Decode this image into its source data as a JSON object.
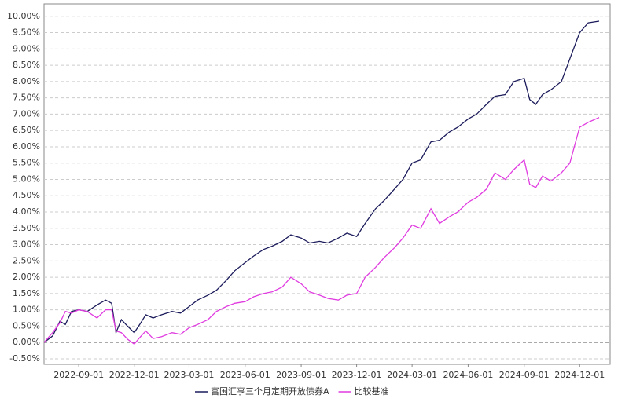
{
  "chart_data": {
    "type": "line",
    "x": [
      "2022-07-06",
      "2022-07-20",
      "2022-08-01",
      "2022-08-10",
      "2022-08-20",
      "2022-09-01",
      "2022-09-15",
      "2022-10-01",
      "2022-10-15",
      "2022-10-25",
      "2022-11-01",
      "2022-11-10",
      "2022-11-20",
      "2022-12-01",
      "2022-12-10",
      "2022-12-20",
      "2023-01-01",
      "2023-01-15",
      "2023-02-01",
      "2023-02-15",
      "2023-03-01",
      "2023-03-15",
      "2023-04-01",
      "2023-04-15",
      "2023-05-01",
      "2023-05-15",
      "2023-06-01",
      "2023-06-15",
      "2023-07-01",
      "2023-07-15",
      "2023-08-01",
      "2023-08-15",
      "2023-09-01",
      "2023-09-15",
      "2023-10-01",
      "2023-10-15",
      "2023-11-01",
      "2023-11-15",
      "2023-12-01",
      "2023-12-15",
      "2024-01-01",
      "2024-01-15",
      "2024-02-01",
      "2024-02-15",
      "2024-03-01",
      "2024-03-15",
      "2024-04-01",
      "2024-04-15",
      "2024-05-01",
      "2024-05-15",
      "2024-06-01",
      "2024-06-15",
      "2024-07-01",
      "2024-07-15",
      "2024-08-01",
      "2024-08-15",
      "2024-09-01",
      "2024-09-10",
      "2024-09-20",
      "2024-10-01",
      "2024-10-15",
      "2024-11-01",
      "2024-11-15",
      "2024-12-01",
      "2024-12-15",
      "2025-01-02"
    ],
    "series": [
      {
        "name": "富国汇亨三个月定期开放债券A",
        "color": "#1c1c5c",
        "values": [
          0.0,
          0.2,
          0.65,
          0.55,
          0.95,
          1.0,
          0.95,
          1.15,
          1.3,
          1.2,
          0.3,
          0.7,
          0.5,
          0.3,
          0.55,
          0.85,
          0.75,
          0.85,
          0.95,
          0.9,
          1.1,
          1.3,
          1.45,
          1.6,
          1.9,
          2.2,
          2.45,
          2.65,
          2.85,
          2.95,
          3.1,
          3.3,
          3.2,
          3.05,
          3.1,
          3.05,
          3.2,
          3.35,
          3.25,
          3.65,
          4.1,
          4.35,
          4.7,
          5.0,
          5.5,
          5.6,
          6.15,
          6.2,
          6.45,
          6.6,
          6.85,
          7.0,
          7.3,
          7.55,
          7.6,
          8.0,
          8.1,
          7.45,
          7.3,
          7.6,
          7.75,
          8.0,
          8.7,
          9.5,
          9.8,
          9.85
        ]
      },
      {
        "name": "比较基准",
        "color": "#e03ce0",
        "values": [
          0.0,
          0.3,
          0.6,
          0.95,
          0.9,
          1.0,
          0.95,
          0.75,
          1.0,
          1.0,
          0.35,
          0.3,
          0.1,
          -0.05,
          0.15,
          0.35,
          0.12,
          0.18,
          0.3,
          0.25,
          0.45,
          0.55,
          0.7,
          0.95,
          1.1,
          1.2,
          1.25,
          1.4,
          1.5,
          1.55,
          1.7,
          2.0,
          1.8,
          1.55,
          1.45,
          1.35,
          1.3,
          1.45,
          1.5,
          2.0,
          2.3,
          2.6,
          2.9,
          3.2,
          3.6,
          3.5,
          4.1,
          3.65,
          3.85,
          4.0,
          4.3,
          4.45,
          4.7,
          5.2,
          5.0,
          5.3,
          5.6,
          4.85,
          4.75,
          5.1,
          4.95,
          5.2,
          5.5,
          6.6,
          6.75,
          6.9
        ]
      }
    ],
    "xlim": [
      "2022-07-06",
      "2025-01-20"
    ],
    "xticks": [
      "2022-09-01",
      "2022-12-01",
      "2023-03-01",
      "2023-06-01",
      "2023-09-01",
      "2023-12-01",
      "2024-03-01",
      "2024-06-01",
      "2024-09-01",
      "2024-12-01"
    ],
    "ylim": [
      -0.67,
      10.38
    ],
    "yticks": [
      {
        "value": -0.5,
        "label": "-0.50%"
      },
      {
        "value": 0,
        "label": "0.00%"
      },
      {
        "value": 0.5,
        "label": "0.50%"
      },
      {
        "value": 1,
        "label": "1.00%"
      },
      {
        "value": 1.5,
        "label": "1.50%"
      },
      {
        "value": 2,
        "label": "2.00%"
      },
      {
        "value": 2.5,
        "label": "2.50%"
      },
      {
        "value": 3,
        "label": "3.00%"
      },
      {
        "value": 3.5,
        "label": "3.50%"
      },
      {
        "value": 4,
        "label": "4.00%"
      },
      {
        "value": 4.5,
        "label": "4.50%"
      },
      {
        "value": 5,
        "label": "5.00%"
      },
      {
        "value": 5.5,
        "label": "5.50%"
      },
      {
        "value": 6,
        "label": "6.00%"
      },
      {
        "value": 6.5,
        "label": "6.50%"
      },
      {
        "value": 7,
        "label": "7.00%"
      },
      {
        "value": 7.5,
        "label": "7.50%"
      },
      {
        "value": 8,
        "label": "8.00%"
      },
      {
        "value": 8.5,
        "label": "8.50%"
      },
      {
        "value": 9,
        "label": "9.00%"
      },
      {
        "value": 9.5,
        "label": "9.50%"
      },
      {
        "value": 10,
        "label": "10.00%"
      }
    ],
    "grid": true,
    "legend": "bottom"
  }
}
